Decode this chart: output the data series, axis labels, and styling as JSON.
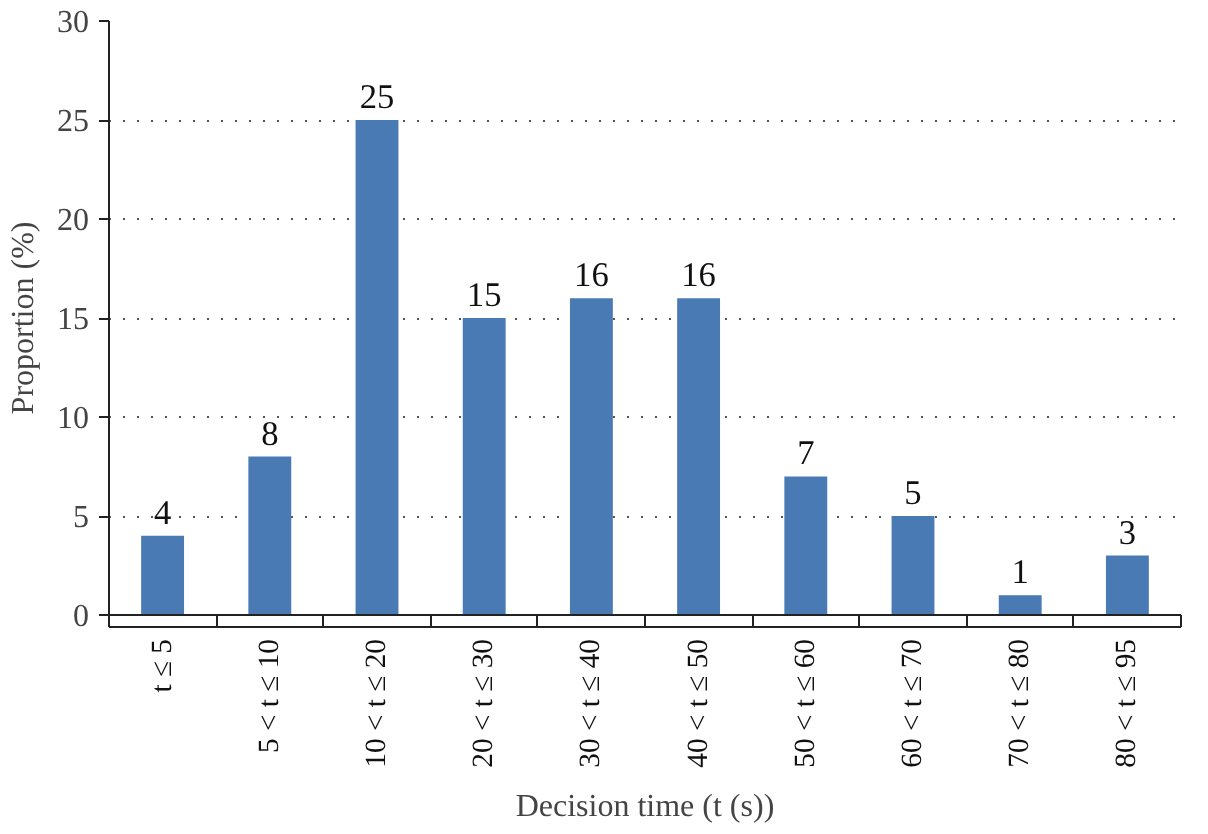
{
  "chart_data": {
    "type": "bar",
    "xlabel": "Decision time (t (s))",
    "ylabel": "Proportion (%)",
    "categories": [
      "t ≤ 5",
      "5 < t ≤ 10",
      "10 < t ≤ 20",
      "20 < t ≤ 30",
      "30 < t ≤ 40",
      "40 < t ≤ 50",
      "50 < t ≤ 60",
      "60 < t ≤ 70",
      "70 < t ≤ 80",
      "80 < t ≤ 95"
    ],
    "values": [
      4,
      8,
      25,
      15,
      16,
      16,
      7,
      5,
      1,
      3
    ],
    "color": "#4a7ab4",
    "ylim": [
      0,
      30
    ],
    "yticks": [
      0,
      5,
      10,
      15,
      20,
      25,
      30
    ],
    "grid": "y",
    "data_labels": true
  }
}
